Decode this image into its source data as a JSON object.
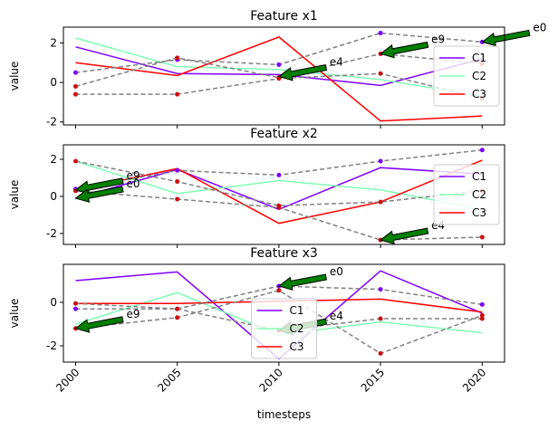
{
  "chart_data": [
    {
      "type": "line",
      "title": "Feature x1",
      "ylabel": "value",
      "x": [
        2000,
        2005,
        2010,
        2015,
        2020
      ],
      "xlim": [
        1999.4,
        2021.1
      ],
      "xticks": [
        2000,
        2005,
        2010,
        2015,
        2020
      ],
      "ylim": [
        -2.15,
        2.8
      ],
      "yticks": [
        -2,
        0,
        2
      ],
      "legend": "right",
      "series": [
        {
          "name": "C1",
          "color": "#7f00ff",
          "values": [
            1.8,
            0.45,
            0.4,
            -0.15,
            1.2
          ]
        },
        {
          "name": "C2",
          "color": "#80ffb4",
          "values": [
            2.25,
            0.8,
            0.65,
            0.15,
            -0.7
          ]
        },
        {
          "name": "C3",
          "color": "#ff0000",
          "values": [
            1.0,
            0.35,
            2.3,
            -1.95,
            -1.7
          ]
        }
      ],
      "examples": [
        {
          "color": "#808080",
          "marker_color": "#7f00ff",
          "values": [
            0.5,
            1.15,
            0.9,
            2.5,
            2.05
          ]
        },
        {
          "color": "#808080",
          "marker_color": "#cc1010",
          "values": [
            -0.2,
            1.25,
            0.25,
            1.45,
            0.95
          ]
        },
        {
          "color": "#808080",
          "marker_color": "#cc1010",
          "values": [
            -0.6,
            -0.6,
            0.2,
            0.45,
            -0.8
          ]
        }
      ],
      "annotations": [
        {
          "text": "e0",
          "x": 2020,
          "y": 2.05
        },
        {
          "text": "e9",
          "x": 2015,
          "y": 1.45
        },
        {
          "text": "e4",
          "x": 2010,
          "y": 0.3
        }
      ]
    },
    {
      "type": "line",
      "title": "Feature x2",
      "ylabel": "value",
      "x": [
        2000,
        2005,
        2010,
        2015,
        2020
      ],
      "xlim": [
        1999.4,
        2021.1
      ],
      "xticks": [
        2000,
        2005,
        2010,
        2015,
        2020
      ],
      "ylim": [
        -2.59,
        2.78
      ],
      "yticks": [
        -2,
        0,
        2
      ],
      "legend": "right",
      "series": [
        {
          "name": "C1",
          "color": "#7f00ff",
          "values": [
            -0.1,
            1.45,
            -0.7,
            1.55,
            1.2
          ]
        },
        {
          "name": "C2",
          "color": "#80ffb4",
          "values": [
            1.9,
            0.15,
            0.85,
            0.35,
            -0.7
          ]
        },
        {
          "name": "C3",
          "color": "#ff0000",
          "values": [
            0.35,
            1.5,
            -1.45,
            -0.3,
            1.95
          ]
        }
      ],
      "examples": [
        {
          "color": "#808080",
          "marker_color": "#7f00ff",
          "values": [
            0.4,
            1.4,
            1.15,
            1.9,
            2.5
          ]
        },
        {
          "color": "#808080",
          "marker_color": "#cc1010",
          "values": [
            1.9,
            0.8,
            -0.5,
            -0.3,
            0.3
          ]
        },
        {
          "color": "#808080",
          "marker_color": "#cc1010",
          "values": [
            0.3,
            -0.15,
            -0.6,
            -2.35,
            -2.2
          ]
        }
      ],
      "annotations": [
        {
          "text": "e9",
          "x": 2000,
          "y": 0.35
        },
        {
          "text": "e0",
          "x": 2000,
          "y": -0.1
        },
        {
          "text": "e4",
          "x": 2015,
          "y": -2.35
        }
      ]
    },
    {
      "type": "line",
      "title": "Feature x3",
      "ylabel": "value",
      "xlabel": "timesteps",
      "x": [
        2000,
        2005,
        2010,
        2015,
        2020
      ],
      "xlim": [
        1999.4,
        2021.1
      ],
      "xticks": [
        2000,
        2005,
        2010,
        2015,
        2020
      ],
      "ylim": [
        -2.75,
        1.75
      ],
      "yticks": [
        -2,
        0
      ],
      "legend": "lower center",
      "series": [
        {
          "name": "C1",
          "color": "#7f00ff",
          "values": [
            1.0,
            1.4,
            -2.6,
            1.45,
            -0.5
          ]
        },
        {
          "name": "C2",
          "color": "#80ffb4",
          "values": [
            -1.0,
            0.45,
            -1.5,
            -0.9,
            -1.4
          ]
        },
        {
          "name": "C3",
          "color": "#ff0000",
          "values": [
            -0.05,
            -0.05,
            0.05,
            0.15,
            -0.45
          ]
        }
      ],
      "examples": [
        {
          "color": "#808080",
          "marker_color": "#7f00ff",
          "values": [
            -0.3,
            -0.3,
            0.75,
            0.6,
            -0.1
          ]
        },
        {
          "color": "#808080",
          "marker_color": "#cc1010",
          "values": [
            -1.2,
            -0.7,
            0.55,
            -2.35,
            -0.6
          ]
        },
        {
          "color": "#808080",
          "marker_color": "#cc1010",
          "values": [
            -0.05,
            -0.3,
            -1.3,
            -0.75,
            -0.75
          ]
        }
      ],
      "annotations": [
        {
          "text": "e0",
          "x": 2010,
          "y": 0.75
        },
        {
          "text": "e9",
          "x": 2000,
          "y": -1.2
        },
        {
          "text": "e4",
          "x": 2010,
          "y": -1.3
        }
      ]
    }
  ]
}
